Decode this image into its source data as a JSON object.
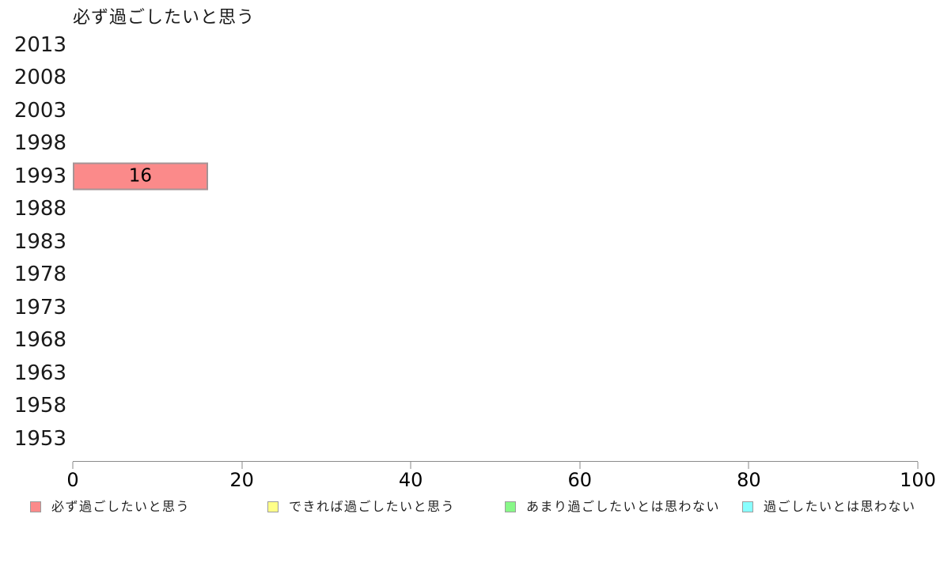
{
  "chart_data": {
    "type": "bar",
    "orientation": "horizontal",
    "title": "必ず過ごしたいと思う",
    "categories": [
      "2013",
      "2008",
      "2003",
      "1998",
      "1993",
      "1988",
      "1983",
      "1978",
      "1973",
      "1968",
      "1963",
      "1958",
      "1953"
    ],
    "series": [
      {
        "name": "必ず過ごしたいと思う",
        "color": "#fb8a8a",
        "values": [
          null,
          null,
          null,
          null,
          16,
          null,
          null,
          null,
          null,
          null,
          null,
          null,
          null
        ]
      },
      {
        "name": "できれば過ごしたいと思う",
        "color": "#ffff88",
        "values": [
          null,
          null,
          null,
          null,
          null,
          null,
          null,
          null,
          null,
          null,
          null,
          null,
          null
        ]
      },
      {
        "name": "あまり過ごしたいとは思わない",
        "color": "#88f888",
        "values": [
          null,
          null,
          null,
          null,
          null,
          null,
          null,
          null,
          null,
          null,
          null,
          null,
          null
        ]
      },
      {
        "name": "過ごしたいとは思わない",
        "color": "#88ffff",
        "values": [
          null,
          null,
          null,
          null,
          null,
          null,
          null,
          null,
          null,
          null,
          null,
          null,
          null
        ]
      }
    ],
    "xlim": [
      0,
      100
    ],
    "x_ticks": [
      0,
      20,
      40,
      60,
      80,
      100
    ],
    "grid": false,
    "legend_position": "bottom",
    "bar_border_color": "#a59496",
    "axis_color": "#8a8a8a",
    "background_color": "#ffffff",
    "text_color": "#1a1a1a"
  }
}
